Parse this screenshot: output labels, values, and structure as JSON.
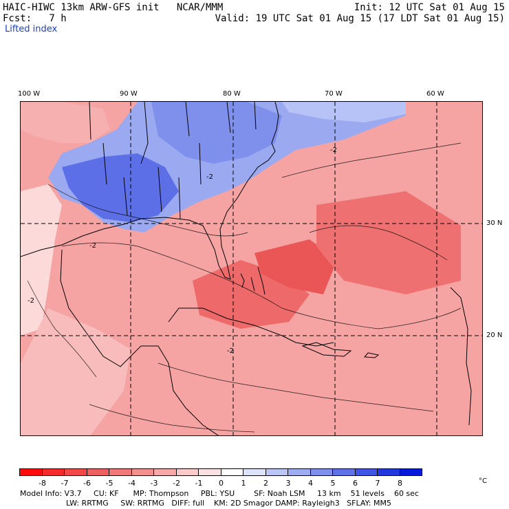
{
  "header": {
    "line1_left": "HAIC-HIWC 13km ARW-GFS init   NCAR/MMM",
    "line1_right": "Init: 12 UTC Sat 01 Aug 15",
    "line2_left": "Fcst:   7 h",
    "line2_right": "Valid: 19 UTC Sat 01 Aug 15 (17 LDT Sat 01 Aug 15)",
    "field_name": "Lifted index"
  },
  "map": {
    "lon_labels": [
      "100 W",
      "90 W",
      "80 W",
      "70 W",
      "60 W"
    ],
    "lat_labels": [
      "30 N",
      "20 N"
    ],
    "contour_labels": [
      "-2",
      "-2",
      "-2",
      "-2",
      "-2"
    ]
  },
  "colorbar": {
    "unit": "°C",
    "ticks": [
      "-8",
      "-7",
      "-6",
      "-5",
      "-4",
      "-3",
      "-2",
      "-1",
      "0",
      "1",
      "2",
      "3",
      "4",
      "5",
      "6",
      "7",
      "8"
    ],
    "colors": [
      "#ff0d0d",
      "#f52a2a",
      "#f24848",
      "#ee5f5f",
      "#f07878",
      "#f39090",
      "#f7a9a9",
      "#fbcaca",
      "#fbe2e2",
      "#ffffff",
      "#dde3fb",
      "#bcc6f6",
      "#9eacf2",
      "#7f90ed",
      "#5f73e9",
      "#3f55e4",
      "#2238df",
      "#0419d9"
    ]
  },
  "model_info": {
    "line1": "Model Info: V3.7     CU: KF      MP: Thompson     PBL: YSU        SF: Noah LSM     13 km    51 levels    60 sec",
    "line2": "LW: RRTMG     SW: RRTMG   DIFF: full    KM: 2D Smagor DAMP: Rayleigh3   SFLAY: MM5"
  }
}
